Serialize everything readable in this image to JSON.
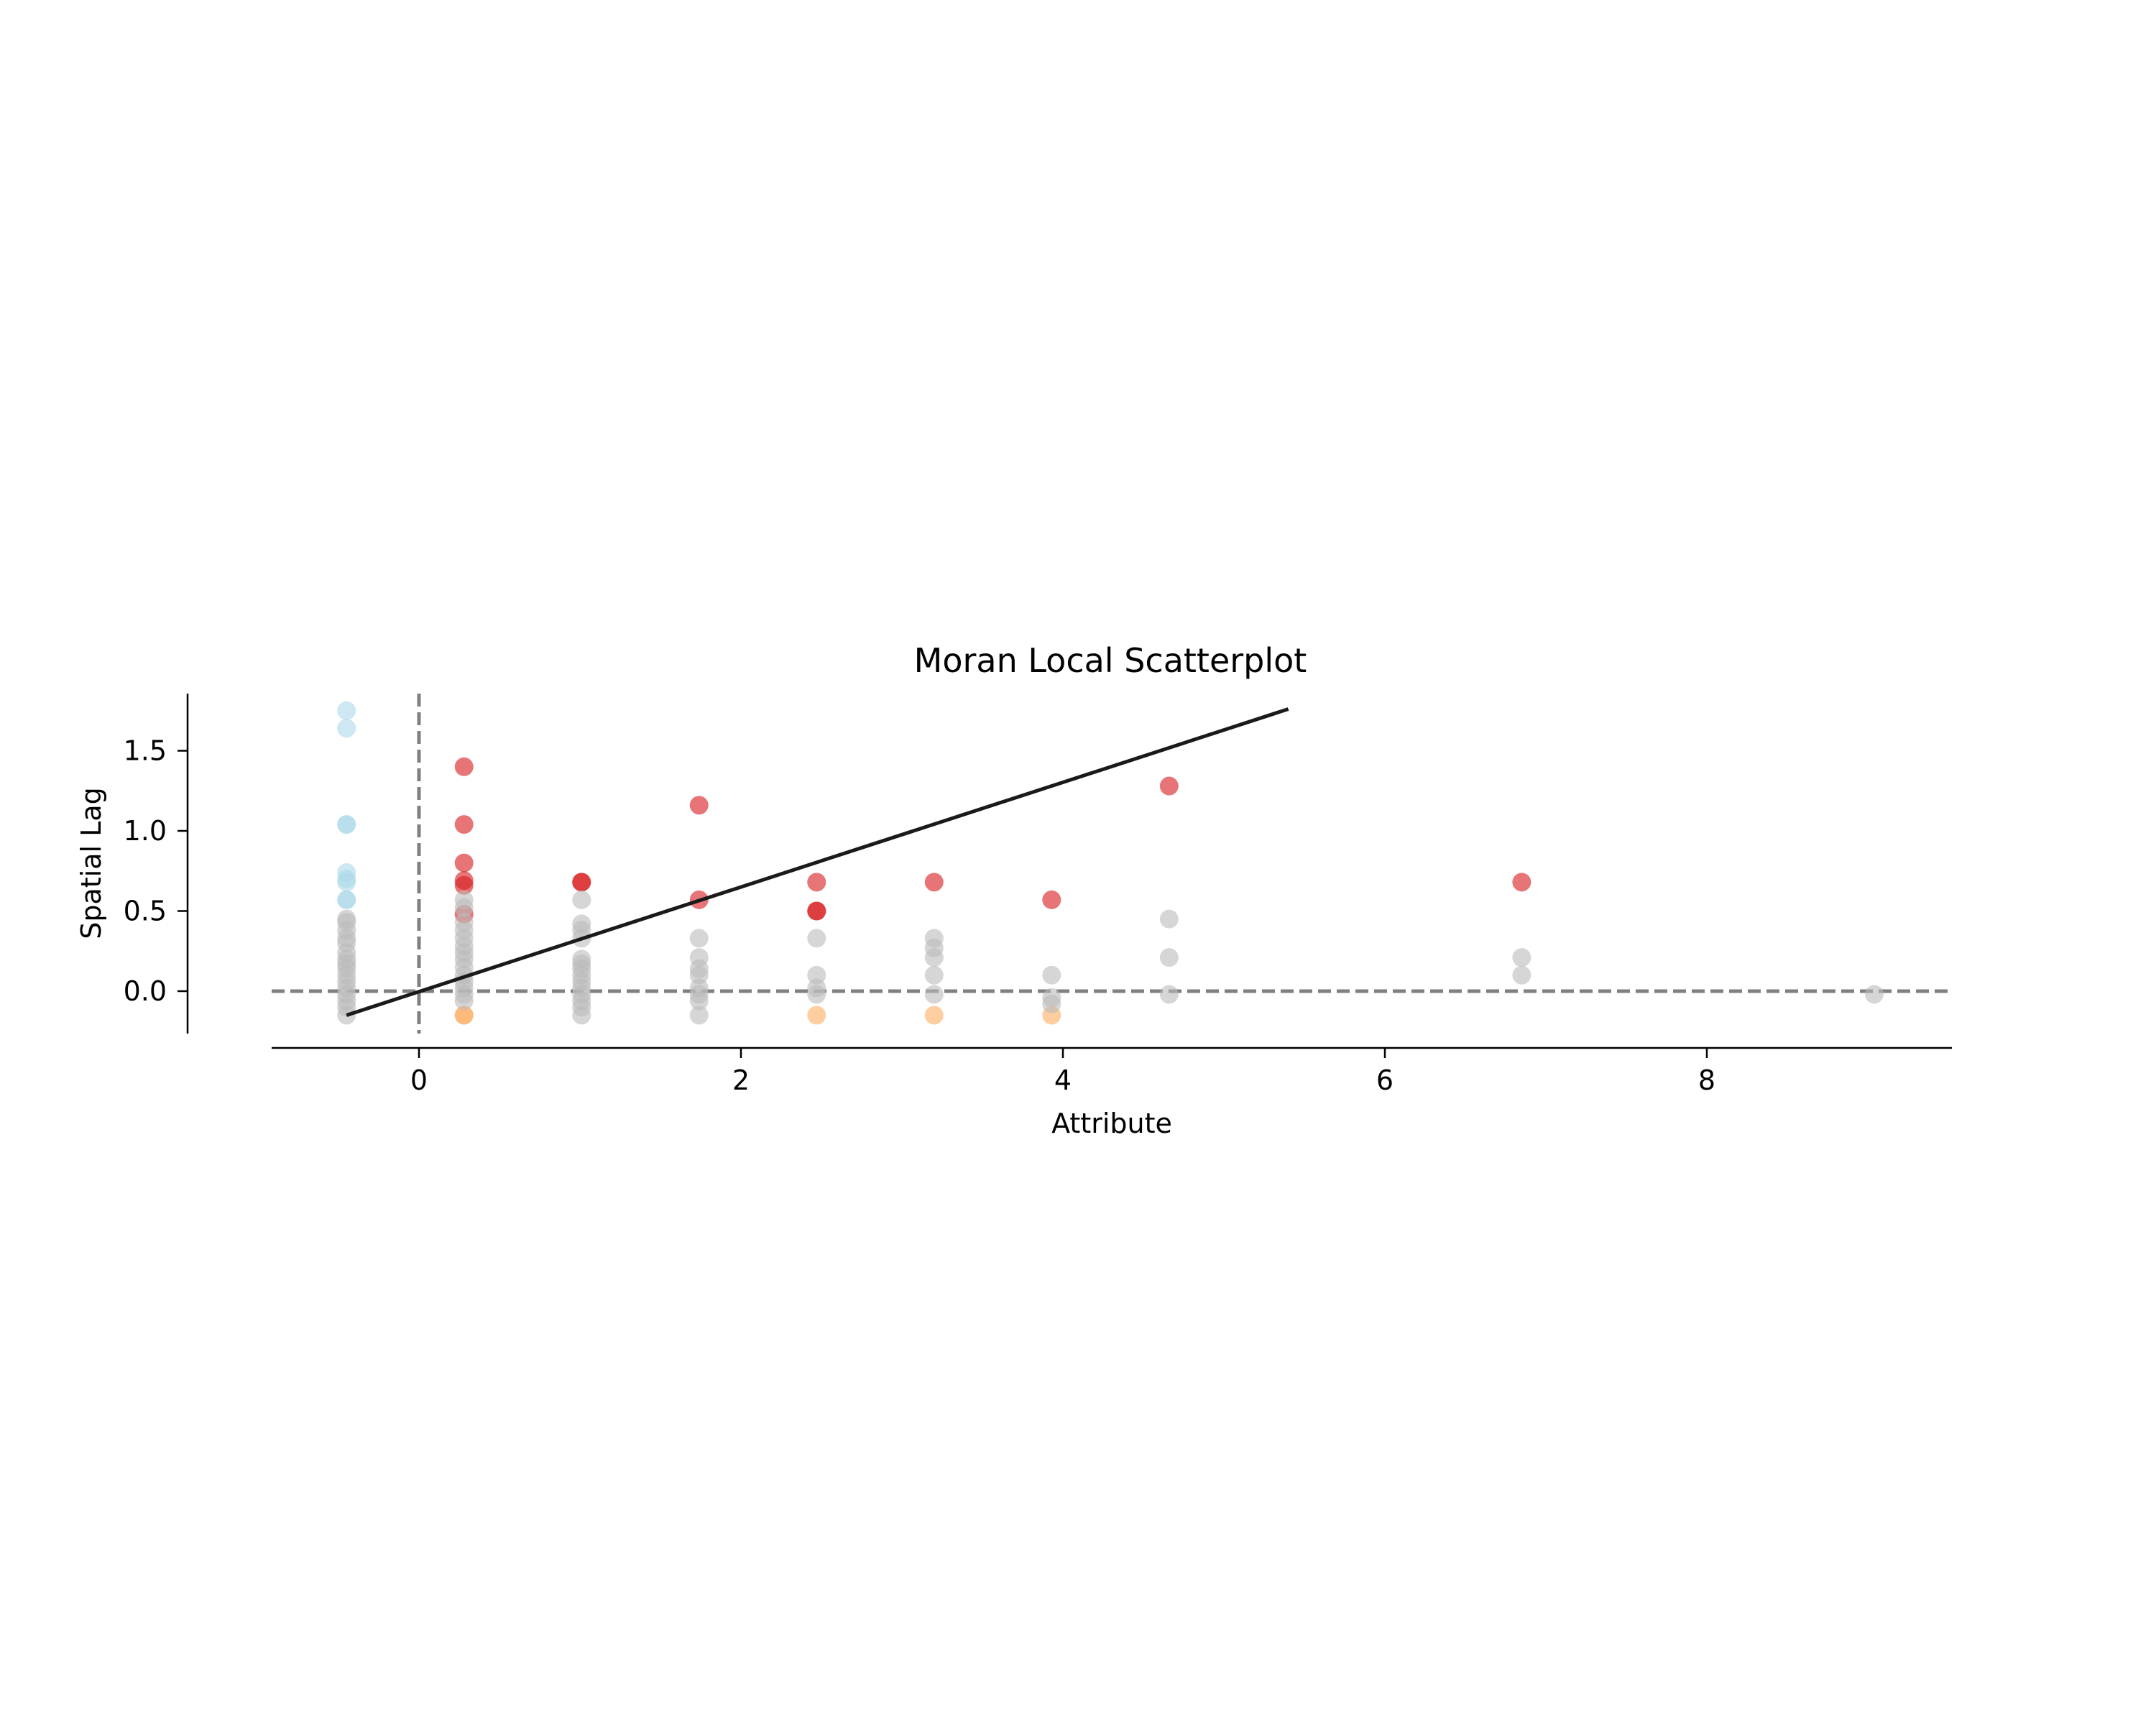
{
  "chart_data": {
    "type": "scatter",
    "title": "Moran Local Scatterplot",
    "xlabel": "Attribute",
    "ylabel": "Spatial Lag",
    "xlim": [
      -1.15,
      9.5
    ],
    "ylim": [
      -0.25,
      1.85
    ],
    "xticks": [
      0,
      2,
      4,
      6,
      8
    ],
    "xtick_labels": [
      "0",
      "2",
      "4",
      "6",
      "8"
    ],
    "yticks": [
      0.0,
      0.5,
      1.0,
      1.5
    ],
    "ytick_labels": [
      "0.0",
      "0.5",
      "1.0",
      "1.5"
    ],
    "grid": false,
    "reference_lines": {
      "vertical_x": 0,
      "horizontal_y": 0,
      "style": "dashed",
      "color": "#808080"
    },
    "fit_line": {
      "x": [
        -0.45,
        5.4
      ],
      "y": [
        -0.15,
        1.76
      ],
      "color": "#1a1a1a"
    },
    "colors": {
      "high_high": "#d7191c",
      "low_high": "#abd9e9",
      "low_low": "#2c7bb6",
      "high_low": "#fdae61",
      "not_significant": "#bababa"
    },
    "series": [
      {
        "key": "high_high",
        "opacity": 0.6,
        "points": [
          [
            0.28,
            1.4
          ],
          [
            0.28,
            1.04
          ],
          [
            0.28,
            0.8
          ],
          [
            0.28,
            0.69
          ],
          [
            0.28,
            0.66
          ],
          [
            0.28,
            0.48
          ],
          [
            1.01,
            0.68
          ],
          [
            1.01,
            0.68
          ],
          [
            1.74,
            1.16
          ],
          [
            1.74,
            0.57
          ],
          [
            2.47,
            0.68
          ],
          [
            2.47,
            0.5
          ],
          [
            2.47,
            0.5
          ],
          [
            3.2,
            0.68
          ],
          [
            3.93,
            0.57
          ],
          [
            4.66,
            1.28
          ],
          [
            6.85,
            0.68
          ]
        ]
      },
      {
        "key": "low_high",
        "opacity": 0.6,
        "points": [
          [
            -0.45,
            1.75
          ],
          [
            -0.45,
            1.64
          ],
          [
            -0.45,
            1.04
          ],
          [
            -0.45,
            1.04
          ],
          [
            -0.45,
            0.74
          ],
          [
            -0.45,
            0.7
          ],
          [
            -0.45,
            0.68
          ],
          [
            -0.45,
            0.57
          ],
          [
            -0.45,
            0.57
          ]
        ]
      },
      {
        "key": "high_low",
        "opacity": 0.6,
        "points": [
          [
            0.28,
            -0.15
          ],
          [
            0.28,
            -0.15
          ],
          [
            2.47,
            -0.15
          ],
          [
            3.2,
            -0.15
          ],
          [
            3.93,
            -0.15
          ]
        ]
      },
      {
        "key": "not_significant",
        "opacity": 0.6,
        "points": [
          [
            -0.45,
            0.45
          ],
          [
            -0.45,
            0.43
          ],
          [
            -0.45,
            0.38
          ],
          [
            -0.45,
            0.33
          ],
          [
            -0.45,
            0.3
          ],
          [
            -0.45,
            0.24
          ],
          [
            -0.45,
            0.2
          ],
          [
            -0.45,
            0.17
          ],
          [
            -0.45,
            0.14
          ],
          [
            -0.45,
            0.1
          ],
          [
            -0.45,
            0.06
          ],
          [
            -0.45,
            0.02
          ],
          [
            -0.45,
            -0.02
          ],
          [
            -0.45,
            -0.06
          ],
          [
            -0.45,
            -0.1
          ],
          [
            -0.45,
            -0.15
          ],
          [
            0.28,
            0.57
          ],
          [
            0.28,
            0.52
          ],
          [
            0.28,
            0.43
          ],
          [
            0.28,
            0.38
          ],
          [
            0.28,
            0.33
          ],
          [
            0.28,
            0.28
          ],
          [
            0.28,
            0.24
          ],
          [
            0.28,
            0.2
          ],
          [
            0.28,
            0.15
          ],
          [
            0.28,
            0.1
          ],
          [
            0.28,
            0.06
          ],
          [
            0.28,
            0.02
          ],
          [
            0.28,
            -0.02
          ],
          [
            0.28,
            -0.06
          ],
          [
            1.01,
            0.57
          ],
          [
            1.01,
            0.42
          ],
          [
            1.01,
            0.38
          ],
          [
            1.01,
            0.33
          ],
          [
            1.01,
            0.2
          ],
          [
            1.01,
            0.17
          ],
          [
            1.01,
            0.14
          ],
          [
            1.01,
            0.1
          ],
          [
            1.01,
            0.06
          ],
          [
            1.01,
            0.02
          ],
          [
            1.01,
            -0.02
          ],
          [
            1.01,
            -0.06
          ],
          [
            1.01,
            -0.1
          ],
          [
            1.01,
            -0.15
          ],
          [
            1.74,
            0.33
          ],
          [
            1.74,
            0.21
          ],
          [
            1.74,
            0.14
          ],
          [
            1.74,
            0.1
          ],
          [
            1.74,
            0.02
          ],
          [
            1.74,
            -0.02
          ],
          [
            1.74,
            -0.06
          ],
          [
            1.74,
            -0.15
          ],
          [
            2.47,
            0.33
          ],
          [
            2.47,
            0.1
          ],
          [
            2.47,
            0.02
          ],
          [
            2.47,
            -0.02
          ],
          [
            3.2,
            0.33
          ],
          [
            3.2,
            0.27
          ],
          [
            3.2,
            0.21
          ],
          [
            3.2,
            0.1
          ],
          [
            3.2,
            -0.02
          ],
          [
            3.93,
            0.1
          ],
          [
            3.93,
            -0.04
          ],
          [
            3.93,
            -0.08
          ],
          [
            4.66,
            0.45
          ],
          [
            4.66,
            0.21
          ],
          [
            4.66,
            -0.02
          ],
          [
            6.85,
            0.21
          ],
          [
            6.85,
            0.1
          ],
          [
            9.04,
            -0.02
          ]
        ]
      }
    ]
  }
}
